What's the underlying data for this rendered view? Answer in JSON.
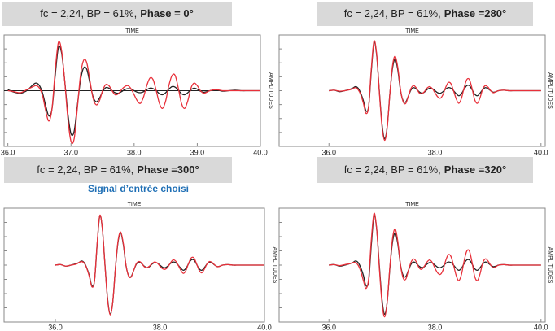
{
  "chart_data": [
    {
      "type": "line",
      "title": "fc = 2,24, BP = 61%,",
      "phase_label": "Phase = 0°",
      "x_label": "TIME",
      "y_label": "AMPLITUDES",
      "zero_line": true,
      "x": [
        36.0,
        36.1,
        36.2,
        36.3,
        36.4,
        36.45,
        36.5,
        36.55,
        36.6,
        36.65,
        36.7,
        36.75,
        36.8,
        36.85,
        36.9,
        36.95,
        37.0,
        37.05,
        37.1,
        37.15,
        37.2,
        37.25,
        37.3,
        37.35,
        37.4,
        37.45,
        37.5,
        37.55,
        37.6,
        37.65,
        37.7,
        37.75,
        37.8,
        37.85,
        37.9,
        37.95,
        38.0,
        38.05,
        38.1,
        38.15,
        38.2,
        38.25,
        38.3,
        38.35,
        38.4,
        38.45,
        38.5,
        38.55,
        38.6,
        38.65,
        38.7,
        38.75,
        38.8,
        38.85,
        38.9,
        38.95,
        39.0,
        39.05,
        39.1,
        39.15,
        39.2,
        39.3,
        39.4,
        39.5,
        39.6,
        39.7,
        39.8,
        39.9,
        40.0
      ],
      "xlim": [
        35.94,
        40.0
      ],
      "xticks": [
        {
          "value": 36,
          "label": "36.0"
        },
        {
          "value": 37,
          "label": "37.0"
        },
        {
          "value": 38,
          "label": "38.0"
        },
        {
          "value": 39,
          "label": "39.0"
        },
        {
          "value": 40,
          "label": "40.0"
        }
      ],
      "ylim": [
        -1.1,
        1.1
      ],
      "series": [
        {
          "color": "#222222",
          "values": [
            0.02,
            -0.03,
            -0.05,
            0.0,
            0.12,
            0.15,
            0.1,
            -0.05,
            -0.3,
            -0.5,
            -0.35,
            0.3,
            0.85,
            0.75,
            0.2,
            -0.45,
            -0.85,
            -0.8,
            -0.3,
            0.2,
            0.45,
            0.42,
            0.15,
            -0.12,
            -0.22,
            -0.15,
            -0.02,
            0.06,
            0.05,
            0.0,
            -0.04,
            -0.05,
            -0.02,
            0.02,
            0.04,
            0.03,
            0.0,
            -0.03,
            -0.04,
            -0.02,
            0.02,
            0.05,
            0.04,
            0.0,
            -0.06,
            -0.08,
            -0.04,
            0.03,
            0.08,
            0.07,
            0.01,
            -0.06,
            -0.08,
            -0.04,
            0.02,
            0.05,
            0.03,
            -0.01,
            -0.03,
            -0.02,
            0.0,
            0.02,
            -0.01,
            0.0,
            0.01,
            0.0,
            0.0,
            0.0,
            0.0
          ]
        },
        {
          "color": "#e8303a",
          "values": [
            0.0,
            -0.02,
            -0.04,
            0.02,
            0.08,
            0.1,
            0.05,
            -0.1,
            -0.4,
            -0.6,
            -0.35,
            0.4,
            0.95,
            0.8,
            0.2,
            -0.55,
            -1.0,
            -0.95,
            -0.35,
            0.3,
            0.6,
            0.55,
            0.2,
            -0.15,
            -0.28,
            -0.2,
            0.0,
            0.12,
            0.1,
            0.0,
            -0.08,
            -0.06,
            0.02,
            0.08,
            0.1,
            0.04,
            -0.08,
            -0.2,
            -0.25,
            -0.12,
            0.1,
            0.25,
            0.22,
            0.0,
            -0.25,
            -0.35,
            -0.2,
            0.1,
            0.3,
            0.3,
            0.05,
            -0.25,
            -0.35,
            -0.2,
            0.05,
            0.15,
            0.1,
            0.0,
            -0.05,
            -0.03,
            0.0,
            0.02,
            0.0,
            0.0,
            0.0,
            0.0,
            0.0,
            0.0,
            0.0
          ]
        }
      ]
    },
    {
      "type": "line",
      "title": "fc = 2,24, BP = 61%,",
      "phase_label": "Phase =280°",
      "x_label": "TIME",
      "y_label": "AMPLITUDES",
      "x": [
        36.0,
        36.1,
        36.2,
        36.3,
        36.4,
        36.45,
        36.5,
        36.55,
        36.6,
        36.65,
        36.7,
        36.75,
        36.8,
        36.85,
        36.9,
        36.95,
        37.0,
        37.05,
        37.1,
        37.15,
        37.2,
        37.25,
        37.3,
        37.35,
        37.4,
        37.45,
        37.5,
        37.55,
        37.6,
        37.65,
        37.7,
        37.75,
        37.8,
        37.85,
        37.9,
        37.95,
        38.0,
        38.05,
        38.1,
        38.15,
        38.2,
        38.25,
        38.3,
        38.35,
        38.4,
        38.45,
        38.5,
        38.55,
        38.6,
        38.65,
        38.7,
        38.75,
        38.8,
        38.85,
        38.9,
        38.95,
        39.0,
        39.05,
        39.1,
        39.15,
        39.2,
        39.3,
        39.4,
        39.5,
        39.6,
        39.7,
        39.8,
        39.9,
        40.0
      ],
      "xlim": [
        35.06,
        40.08
      ],
      "xticks": [
        {
          "value": 36,
          "label": "36.0"
        },
        {
          "value": 38,
          "label": "38.0"
        },
        {
          "value": 40,
          "label": "40.0"
        }
      ],
      "ylim": [
        -1.1,
        1.1
      ],
      "series": [
        {
          "color": "#222222",
          "values": [
            0.0,
            0.01,
            -0.02,
            0.0,
            0.03,
            0.05,
            0.08,
            0.05,
            -0.05,
            -0.2,
            -0.4,
            -0.3,
            0.4,
            0.95,
            0.7,
            0.0,
            -0.65,
            -0.95,
            -0.7,
            -0.05,
            0.45,
            0.62,
            0.4,
            0.0,
            -0.2,
            -0.22,
            -0.1,
            0.02,
            0.06,
            0.03,
            -0.02,
            -0.05,
            -0.03,
            0.02,
            0.05,
            0.04,
            0.0,
            -0.04,
            -0.05,
            -0.02,
            0.03,
            0.06,
            0.05,
            0.0,
            -0.06,
            -0.1,
            -0.06,
            0.03,
            0.1,
            0.1,
            0.02,
            -0.07,
            -0.1,
            -0.05,
            0.02,
            0.06,
            0.04,
            0.0,
            -0.03,
            -0.02,
            0.0,
            0.01,
            0.0,
            0.0,
            0.0,
            0.0,
            0.0,
            0.0,
            0.0
          ]
        },
        {
          "color": "#e8303a",
          "values": [
            0.0,
            0.01,
            -0.01,
            0.0,
            0.02,
            0.04,
            0.06,
            0.02,
            -0.08,
            -0.25,
            -0.45,
            -0.3,
            0.45,
            0.98,
            0.72,
            -0.02,
            -0.7,
            -0.98,
            -0.72,
            -0.05,
            0.5,
            0.68,
            0.45,
            0.02,
            -0.22,
            -0.25,
            -0.1,
            0.05,
            0.1,
            0.05,
            -0.04,
            -0.06,
            -0.02,
            0.05,
            0.08,
            0.04,
            -0.04,
            -0.12,
            -0.15,
            -0.08,
            0.06,
            0.16,
            0.14,
            0.0,
            -0.16,
            -0.25,
            -0.15,
            0.06,
            0.22,
            0.22,
            0.04,
            -0.18,
            -0.25,
            -0.14,
            0.03,
            0.1,
            0.07,
            0.0,
            -0.04,
            -0.02,
            0.0,
            0.01,
            0.0,
            0.0,
            0.0,
            0.0,
            0.0,
            0.0,
            0.0
          ]
        }
      ]
    },
    {
      "type": "line",
      "title": "fc = 2,24, BP = 61%,",
      "phase_label": "Phase =300°",
      "x_label": "TIME",
      "y_label": "AMPLITUDES",
      "annotation": "Signal d’entrée choisi",
      "x": [
        36.0,
        36.1,
        36.2,
        36.3,
        36.4,
        36.45,
        36.5,
        36.55,
        36.6,
        36.65,
        36.7,
        36.75,
        36.8,
        36.85,
        36.9,
        36.95,
        37.0,
        37.05,
        37.1,
        37.15,
        37.2,
        37.25,
        37.3,
        37.35,
        37.4,
        37.45,
        37.5,
        37.55,
        37.6,
        37.65,
        37.7,
        37.75,
        37.8,
        37.85,
        37.9,
        37.95,
        38.0,
        38.05,
        38.1,
        38.15,
        38.2,
        38.25,
        38.3,
        38.35,
        38.4,
        38.45,
        38.5,
        38.55,
        38.6,
        38.65,
        38.7,
        38.75,
        38.8,
        38.85,
        38.9,
        38.95,
        39.0,
        39.05,
        39.1,
        39.15,
        39.2,
        39.3,
        39.4,
        39.5,
        39.6,
        39.7,
        39.8,
        39.9,
        40.0
      ],
      "xlim": [
        35.02,
        40.0
      ],
      "xticks": [
        {
          "value": 36,
          "label": "36.0"
        },
        {
          "value": 38,
          "label": "38.0"
        },
        {
          "value": 40,
          "label": "40.0"
        }
      ],
      "ylim": [
        -1.1,
        1.1
      ],
      "series": [
        {
          "color": "#222222",
          "values": [
            0.0,
            0.01,
            -0.02,
            0.0,
            0.03,
            0.05,
            0.08,
            0.05,
            -0.05,
            -0.2,
            -0.4,
            -0.3,
            0.4,
            0.95,
            0.7,
            0.0,
            -0.65,
            -0.95,
            -0.7,
            -0.05,
            0.45,
            0.62,
            0.4,
            0.0,
            -0.2,
            -0.22,
            -0.1,
            0.02,
            0.06,
            0.03,
            -0.02,
            -0.05,
            -0.03,
            0.02,
            0.05,
            0.04,
            0.0,
            -0.04,
            -0.05,
            -0.02,
            0.03,
            0.06,
            0.05,
            0.0,
            -0.06,
            -0.1,
            -0.06,
            0.03,
            0.1,
            0.1,
            0.02,
            -0.07,
            -0.1,
            -0.05,
            0.02,
            0.06,
            0.04,
            0.0,
            -0.03,
            -0.02,
            0.0,
            0.01,
            0.0,
            0.0,
            0.0,
            0.0,
            0.0,
            0.0,
            0.0
          ]
        },
        {
          "color": "#e8303a",
          "values": [
            0.0,
            0.01,
            -0.02,
            0.0,
            0.02,
            0.05,
            0.07,
            0.04,
            -0.06,
            -0.22,
            -0.42,
            -0.3,
            0.42,
            0.96,
            0.7,
            -0.01,
            -0.67,
            -0.96,
            -0.7,
            -0.05,
            0.47,
            0.64,
            0.42,
            0.01,
            -0.21,
            -0.23,
            -0.1,
            0.03,
            0.07,
            0.04,
            -0.03,
            -0.05,
            -0.02,
            0.03,
            0.06,
            0.04,
            -0.02,
            -0.07,
            -0.08,
            -0.04,
            0.04,
            0.1,
            0.08,
            0.0,
            -0.1,
            -0.16,
            -0.1,
            0.04,
            0.14,
            0.14,
            0.03,
            -0.1,
            -0.15,
            -0.08,
            0.02,
            0.07,
            0.05,
            0.0,
            -0.03,
            -0.02,
            0.0,
            0.01,
            0.0,
            0.0,
            0.0,
            0.0,
            0.0,
            0.0,
            0.0
          ]
        }
      ]
    },
    {
      "type": "line",
      "title": "fc = 2,24, BP = 61%,",
      "phase_label": "Phase =320°",
      "x_label": "TIME",
      "y_label": "AMPLITUDES",
      "x": [
        36.0,
        36.1,
        36.2,
        36.3,
        36.4,
        36.45,
        36.5,
        36.55,
        36.6,
        36.65,
        36.7,
        36.75,
        36.8,
        36.85,
        36.9,
        36.95,
        37.0,
        37.05,
        37.1,
        37.15,
        37.2,
        37.25,
        37.3,
        37.35,
        37.4,
        37.45,
        37.5,
        37.55,
        37.6,
        37.65,
        37.7,
        37.75,
        37.8,
        37.85,
        37.9,
        37.95,
        38.0,
        38.05,
        38.1,
        38.15,
        38.2,
        38.25,
        38.3,
        38.35,
        38.4,
        38.45,
        38.5,
        38.55,
        38.6,
        38.65,
        38.7,
        38.75,
        38.8,
        38.85,
        38.9,
        38.95,
        39.0,
        39.05,
        39.1,
        39.15,
        39.2,
        39.3,
        39.4,
        39.5,
        39.6,
        39.7,
        39.8,
        39.9,
        40.0
      ],
      "xlim": [
        35.06,
        40.08
      ],
      "xticks": [
        {
          "value": 36,
          "label": "36.0"
        },
        {
          "value": 38,
          "label": "38.0"
        },
        {
          "value": 40,
          "label": "40.0"
        }
      ],
      "ylim": [
        -1.1,
        1.1
      ],
      "series": [
        {
          "color": "#222222",
          "values": [
            0.0,
            0.01,
            -0.02,
            0.0,
            0.03,
            0.05,
            0.08,
            0.05,
            -0.05,
            -0.2,
            -0.4,
            -0.3,
            0.4,
            0.95,
            0.7,
            0.0,
            -0.65,
            -0.95,
            -0.7,
            -0.05,
            0.45,
            0.62,
            0.4,
            0.0,
            -0.2,
            -0.22,
            -0.1,
            0.02,
            0.06,
            0.03,
            -0.02,
            -0.05,
            -0.03,
            0.02,
            0.05,
            0.04,
            0.0,
            -0.04,
            -0.05,
            -0.02,
            0.03,
            0.06,
            0.05,
            0.0,
            -0.06,
            -0.1,
            -0.06,
            0.03,
            0.1,
            0.1,
            0.02,
            -0.07,
            -0.1,
            -0.05,
            0.02,
            0.06,
            0.04,
            0.0,
            -0.03,
            -0.02,
            0.0,
            0.01,
            0.0,
            0.0,
            0.0,
            0.0,
            0.0,
            0.0,
            0.0
          ]
        },
        {
          "color": "#e8303a",
          "values": [
            0.0,
            0.01,
            -0.01,
            0.01,
            0.03,
            0.05,
            0.05,
            0.0,
            -0.12,
            -0.3,
            -0.45,
            -0.25,
            0.5,
            1.0,
            0.7,
            -0.05,
            -0.72,
            -1.0,
            -0.7,
            -0.02,
            0.52,
            0.7,
            0.45,
            0.0,
            -0.25,
            -0.27,
            -0.1,
            0.06,
            0.12,
            0.06,
            -0.05,
            -0.08,
            -0.02,
            0.06,
            0.1,
            0.05,
            -0.06,
            -0.15,
            -0.18,
            -0.1,
            0.08,
            0.2,
            0.17,
            0.0,
            -0.2,
            -0.3,
            -0.18,
            0.08,
            0.27,
            0.27,
            0.05,
            -0.22,
            -0.3,
            -0.17,
            0.04,
            0.12,
            0.08,
            0.0,
            -0.05,
            -0.03,
            0.0,
            0.01,
            0.0,
            0.0,
            0.0,
            0.0,
            0.0,
            0.0,
            0.0
          ]
        }
      ]
    }
  ]
}
